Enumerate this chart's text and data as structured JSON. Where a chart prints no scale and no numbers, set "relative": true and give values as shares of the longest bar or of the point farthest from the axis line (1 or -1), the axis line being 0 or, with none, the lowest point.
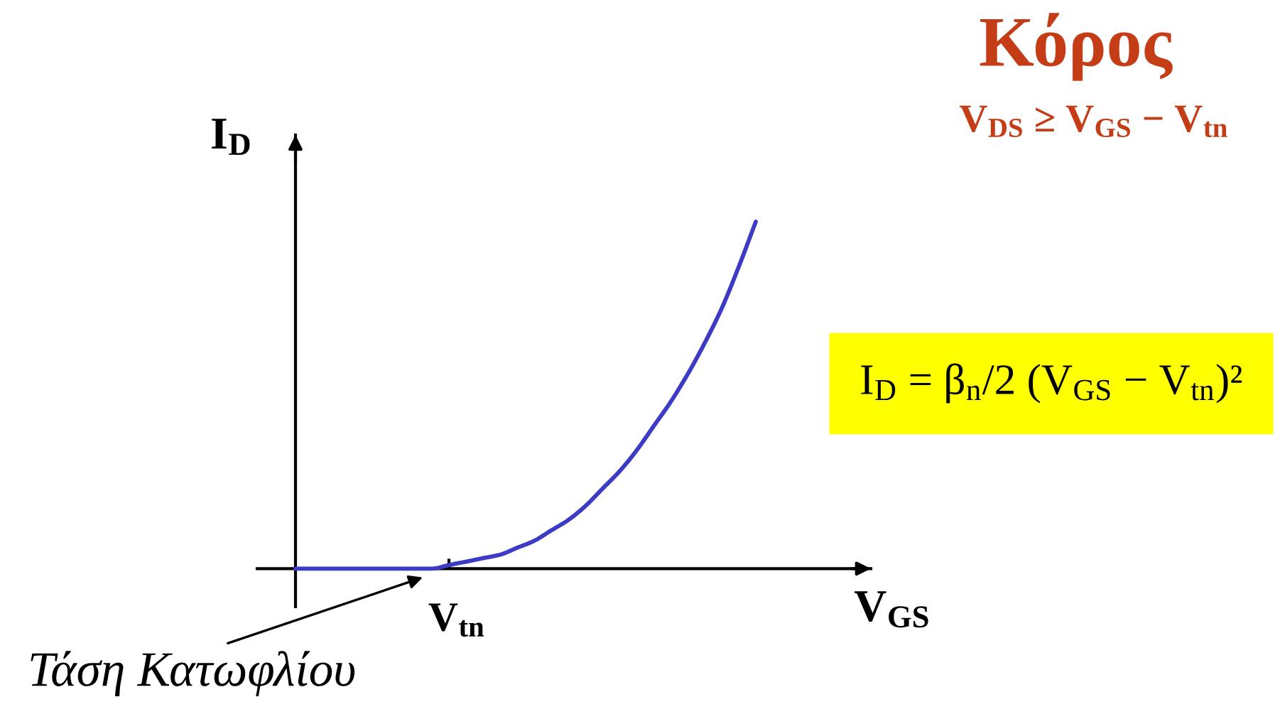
{
  "chart_data": {
    "type": "line",
    "title": "Κόρος",
    "subtitle": "V$_{DS}$ ≥ V$_{GS}$ − V$_{tn}$",
    "xlabel": "V$_{GS}$",
    "ylabel": "I$_{D}$",
    "relative": true,
    "categories": [
      null,
      null,
      null,
      null,
      null,
      null,
      null,
      null,
      null,
      null,
      null,
      null,
      null,
      null,
      null,
      null,
      null,
      null,
      null,
      null,
      null,
      null,
      null,
      null,
      null,
      null,
      null,
      null
    ],
    "series": [
      {
        "color": "#3b3bc6",
        "values": [
          0,
          0,
          0,
          0,
          0,
          0,
          0,
          0,
          0,
          0.01,
          0.02,
          0.03,
          0.04,
          0.06,
          0.08,
          0.11,
          0.14,
          0.18,
          0.23,
          0.28,
          0.34,
          0.41,
          0.48,
          0.56,
          0.65,
          0.75,
          0.87,
          1
        ]
      }
    ],
    "annotations": [
      {
        "text": "V$_{tn}$",
        "y": 0
      },
      "Τάση Κατωφλίου",
      "I$_{D}$ = β$_{n}$/2 (V$_{GS}$ − V$_{tn}$)²"
    ],
    "marker": "none",
    "line_style": "solid"
  }
}
